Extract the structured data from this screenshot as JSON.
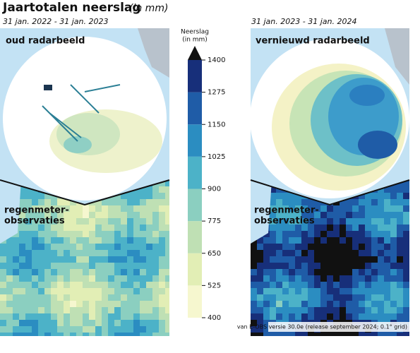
{
  "header": {
    "title": "Jaartotalen neerslag",
    "unit": "(in mm)"
  },
  "panels": [
    {
      "period": "31 jan. 2022 - 31 jan. 2023",
      "radar_label": "oud radarbeeld",
      "gauge_label": [
        "regenmeter-",
        "observaties"
      ]
    },
    {
      "period": "31 jan. 2023 - 31 jan. 2024",
      "radar_label": "vernieuwd radarbeeld",
      "gauge_label": [
        "regenmeter-",
        "observaties"
      ]
    }
  ],
  "legend": {
    "title": [
      "Neerslag",
      "(in mm)"
    ],
    "ticks": [
      400,
      525,
      650,
      775,
      900,
      1025,
      1150,
      1275,
      1400
    ],
    "colors": [
      "#f6f7cf",
      "#e2eeb5",
      "#bfe0b4",
      "#8bcfc0",
      "#4cb2c8",
      "#2b8dc1",
      "#1f5ca7",
      "#172f7a"
    ],
    "over_color": "#111111"
  },
  "source": "van E-OBS versie 30.0e (release september 2024; 0.1° grid)"
}
